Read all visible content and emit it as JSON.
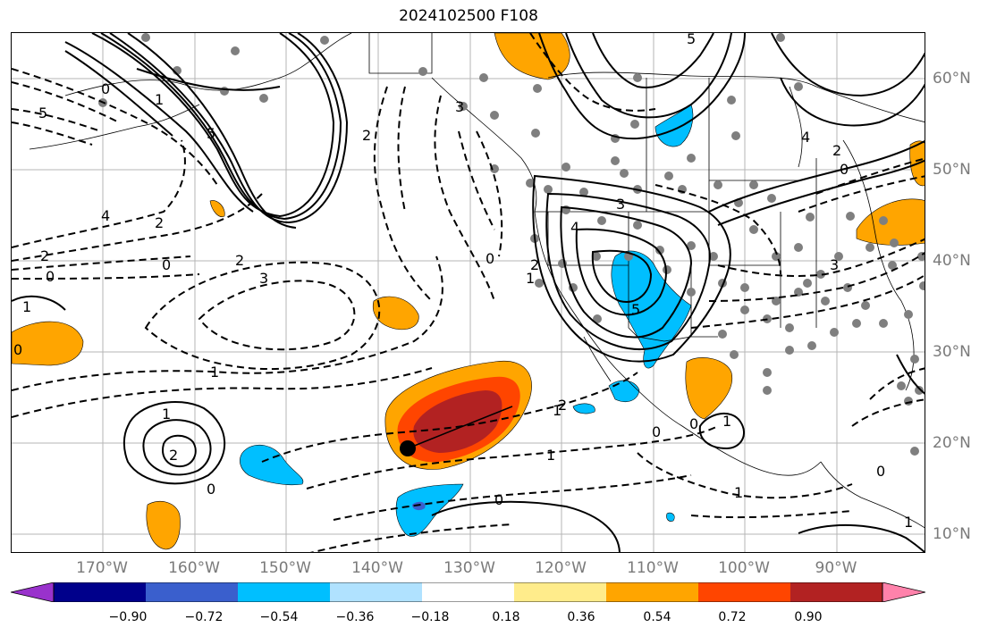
{
  "title": "2024102500 F108",
  "lon_labels": [
    "170°W",
    "160°W",
    "150°W",
    "140°W",
    "130°W",
    "120°W",
    "110°W",
    "100°W",
    "90°W"
  ],
  "lat_labels": [
    "60°N",
    "50°N",
    "40°N",
    "30°N",
    "20°N",
    "10°N"
  ],
  "colorbar": {
    "colors": [
      "#9932CC",
      "#00008B",
      "#3A5FCD",
      "#00BFFF",
      "#B0E2FF",
      "#FFFFFF",
      "#FFEC8B",
      "#FFA500",
      "#FF4500",
      "#B22222",
      "#FF82AB"
    ],
    "tick_labels": [
      "−0.90",
      "−0.72",
      "−0.54",
      "−0.36",
      "−0.18",
      "0.18",
      "0.36",
      "0.54",
      "0.72",
      "0.90"
    ]
  },
  "contour_labels": [
    "5",
    "0",
    "5",
    "1",
    "4",
    "2",
    "2",
    "0",
    "0",
    "2",
    "3",
    "1",
    "0",
    "1",
    "2",
    "0",
    "2",
    "3",
    "4",
    "3",
    "5",
    "2",
    "1",
    "0",
    "1",
    "2",
    "1",
    "0",
    "1",
    "0",
    "0",
    "5",
    "4",
    "2",
    "0",
    "3",
    "1",
    "0",
    "1",
    "1"
  ],
  "marker": {
    "lon": "137°W",
    "lat": "19.5°N"
  }
}
